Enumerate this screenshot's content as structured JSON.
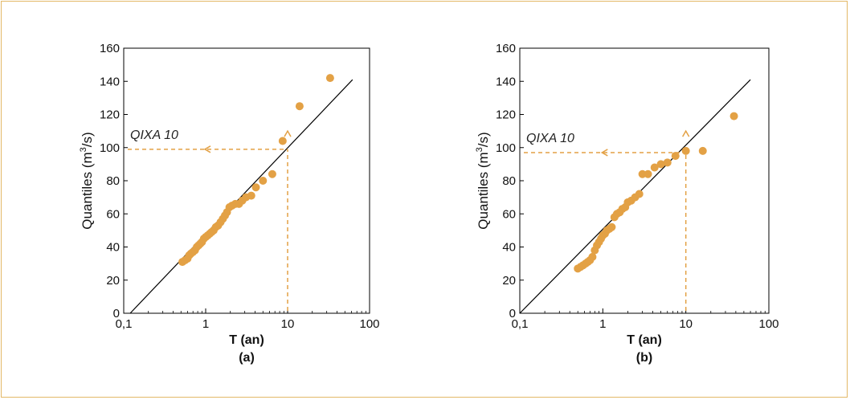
{
  "accent_color": "#e3a145",
  "border_color": "#e3b867",
  "chart_data": [
    {
      "type": "scatter",
      "panel_label": "(a)",
      "xlabel": "T (an)",
      "ylabel_prefix": "Quantiles (m",
      "ylabel_sup": "3",
      "ylabel_suffix": "/s)",
      "x_scale": "log",
      "xlim": [
        0.1,
        100
      ],
      "ylim": [
        0,
        160
      ],
      "x_ticks": [
        0.1,
        1,
        10,
        100
      ],
      "x_tick_labels": [
        "0,1",
        "1",
        "10",
        "100"
      ],
      "y_ticks": [
        0,
        20,
        40,
        60,
        80,
        100,
        120,
        140,
        160
      ],
      "y_tick_labels": [
        "0",
        "20",
        "40",
        "60",
        "80",
        "100",
        "120",
        "140",
        "160"
      ],
      "fit_line": [
        [
          0.12,
          0
        ],
        [
          62,
          141
        ]
      ],
      "annotation": "QIXA 10",
      "annotation_T": 10,
      "annotation_Q": 99,
      "points": [
        [
          0.52,
          31
        ],
        [
          0.56,
          32
        ],
        [
          0.6,
          33
        ],
        [
          0.63,
          35
        ],
        [
          0.66,
          36
        ],
        [
          0.7,
          37
        ],
        [
          0.74,
          38
        ],
        [
          0.78,
          40
        ],
        [
          0.82,
          41
        ],
        [
          0.86,
          42
        ],
        [
          0.9,
          43
        ],
        [
          0.95,
          45
        ],
        [
          1.0,
          46
        ],
        [
          1.06,
          47
        ],
        [
          1.12,
          48
        ],
        [
          1.18,
          49
        ],
        [
          1.25,
          50
        ],
        [
          1.33,
          52
        ],
        [
          1.42,
          53
        ],
        [
          1.52,
          55
        ],
        [
          1.62,
          57
        ],
        [
          1.72,
          59
        ],
        [
          1.82,
          61
        ],
        [
          1.95,
          64
        ],
        [
          2.1,
          65
        ],
        [
          2.3,
          66
        ],
        [
          2.55,
          66
        ],
        [
          2.8,
          68
        ],
        [
          3.1,
          70
        ],
        [
          3.6,
          71
        ],
        [
          4.1,
          76
        ],
        [
          5.0,
          80
        ],
        [
          6.5,
          84
        ],
        [
          8.7,
          104
        ],
        [
          14,
          125
        ],
        [
          33,
          142
        ]
      ]
    },
    {
      "type": "scatter",
      "panel_label": "(b)",
      "xlabel": "T (an)",
      "ylabel_prefix": "Quantiles (m",
      "ylabel_sup": "3",
      "ylabel_suffix": "/s)",
      "x_scale": "log",
      "xlim": [
        0.1,
        100
      ],
      "ylim": [
        0,
        160
      ],
      "x_ticks": [
        0.1,
        1,
        10,
        100
      ],
      "x_tick_labels": [
        "0,1",
        "1",
        "10",
        "100"
      ],
      "y_ticks": [
        0,
        20,
        40,
        60,
        80,
        100,
        120,
        140,
        160
      ],
      "y_tick_labels": [
        "0",
        "20",
        "40",
        "60",
        "80",
        "100",
        "120",
        "140",
        "160"
      ],
      "fit_line": [
        [
          0.1,
          0
        ],
        [
          60,
          141
        ]
      ],
      "annotation": "QIXA 10",
      "annotation_T": 10,
      "annotation_Q": 97,
      "points": [
        [
          0.5,
          27
        ],
        [
          0.54,
          28
        ],
        [
          0.58,
          29
        ],
        [
          0.62,
          30
        ],
        [
          0.66,
          31
        ],
        [
          0.7,
          32
        ],
        [
          0.75,
          34
        ],
        [
          0.8,
          38
        ],
        [
          0.85,
          41
        ],
        [
          0.9,
          43
        ],
        [
          0.95,
          45
        ],
        [
          1.0,
          47
        ],
        [
          1.06,
          48
        ],
        [
          1.12,
          50
        ],
        [
          1.2,
          51
        ],
        [
          1.28,
          52
        ],
        [
          1.38,
          58
        ],
        [
          1.48,
          60
        ],
        [
          1.6,
          61
        ],
        [
          1.72,
          63
        ],
        [
          1.86,
          64
        ],
        [
          2.0,
          67
        ],
        [
          2.2,
          68
        ],
        [
          2.45,
          70
        ],
        [
          2.75,
          72
        ],
        [
          3.0,
          84
        ],
        [
          3.5,
          84
        ],
        [
          4.2,
          88
        ],
        [
          5.0,
          90
        ],
        [
          6.0,
          91
        ],
        [
          7.5,
          95
        ],
        [
          10,
          98
        ],
        [
          16,
          98
        ],
        [
          38,
          119
        ]
      ]
    }
  ]
}
